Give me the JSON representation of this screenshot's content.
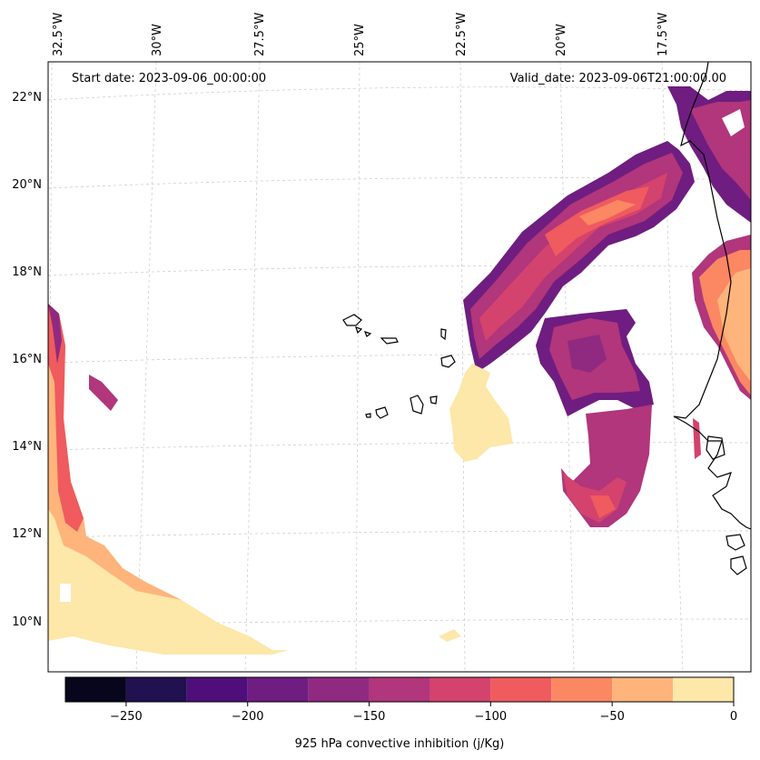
{
  "header": {
    "start_date": "Start date: 2023-09-06_00:00:00",
    "valid_date": "Valid_date: 2023-09-06T21:00:00.00"
  },
  "lon_labels": [
    "32.5°W",
    "30°W",
    "27.5°W",
    "25°W",
    "22.5°W",
    "20°W",
    "17.5°W"
  ],
  "lat_labels": [
    "22°N",
    "20°N",
    "18°N",
    "16°N",
    "14°N",
    "12°N",
    "10°N"
  ],
  "colorbar": {
    "label": "925 hPa convective inhibition (j/Kg)",
    "tick_labels": [
      "−250",
      "−200",
      "−150",
      "−100",
      "−50",
      "0"
    ],
    "levels": [
      -275,
      -250,
      -225,
      -200,
      -175,
      -150,
      -125,
      -100,
      -75,
      -50,
      -25,
      0
    ],
    "colors": [
      "#07061c",
      "#221150",
      "#4e0f7a",
      "#6f1d81",
      "#8f2a80",
      "#b1367b",
      "#d3436e",
      "#ef5b5e",
      "#fb8763",
      "#feb47b",
      "#fde7a9"
    ]
  },
  "colors": {
    "coastline": "#000000",
    "gridline": "#c8c8c8"
  }
}
